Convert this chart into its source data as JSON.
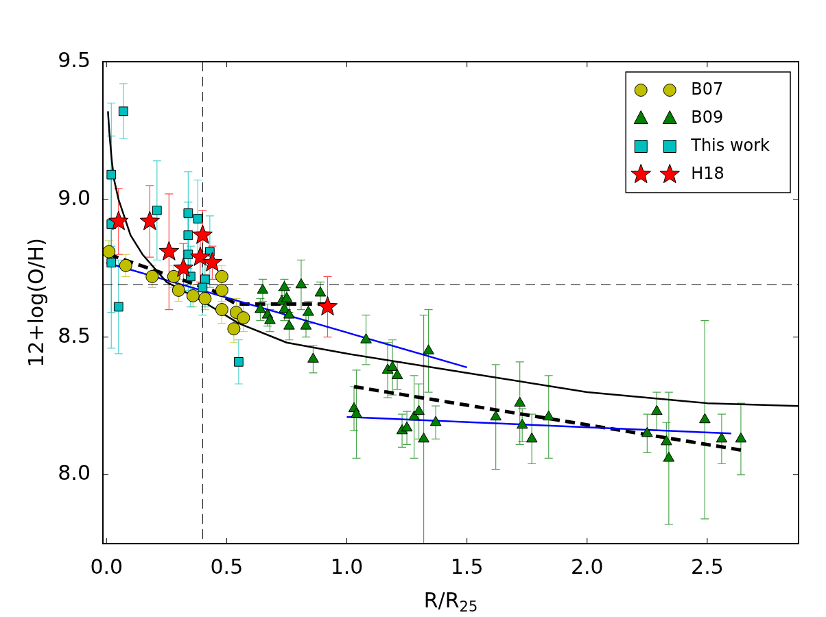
{
  "chart_data": {
    "type": "scatter",
    "xlabel": "R/R$_{25}$",
    "ylabel": "12+log(O/H)",
    "xlim": [
      -0.015,
      2.88
    ],
    "xticks": [
      {
        "value": 0,
        "label": "0.0"
      },
      0.5,
      {
        "value": 1,
        "label": "1.0"
      },
      1.5,
      {
        "value": 2,
        "label": "2.0"
      },
      2.5
    ],
    "ylim": [
      7.75,
      9.5
    ],
    "yticks": [
      {
        "value": 8,
        "label": "8.0"
      },
      8.5,
      {
        "value": 9,
        "label": "9.0"
      },
      9.5
    ],
    "grid": false,
    "legend": "top right",
    "ref_lines": [
      {
        "axis": "x",
        "value": 0.4,
        "color": "#000000",
        "line_style": "dashed"
      },
      {
        "axis": "y",
        "value": 8.69,
        "color": "#000000",
        "line_style": "dashed"
      }
    ],
    "series": [
      {
        "type": "line",
        "color": "#000000",
        "line_style": "solid",
        "x": [
          0.006,
          0.012,
          0.022,
          0.032,
          0.05,
          0.1,
          0.15,
          0.25,
          0.4,
          0.55,
          0.75,
          1.0,
          1.5,
          2.0,
          2.5,
          2.88
        ],
        "values": [
          9.32,
          9.24,
          9.14,
          9.07,
          9.0,
          8.87,
          8.8,
          8.7,
          8.63,
          8.55,
          8.48,
          8.44,
          8.37,
          8.3,
          8.26,
          8.25
        ]
      },
      {
        "name": "B07",
        "marker": "circle",
        "color": "#bfbf00",
        "x": [
          0.01,
          0.08,
          0.19,
          0.28,
          0.3,
          0.36,
          0.41,
          0.48,
          0.48,
          0.48,
          0.54,
          0.57,
          0.53
        ],
        "values": [
          8.81,
          8.76,
          8.72,
          8.72,
          8.67,
          8.65,
          8.64,
          8.72,
          8.67,
          8.6,
          8.59,
          8.57,
          8.53
        ],
        "errors": [
          0.04,
          0.04,
          0.04,
          0.04,
          0.04,
          0.04,
          0.04,
          0.04,
          0.04,
          0.05,
          0.05,
          0.05,
          0.05
        ]
      },
      {
        "name": "B09",
        "marker": "triangle",
        "color": "#008000",
        "x": [
          0.65,
          0.74,
          0.81,
          0.89,
          0.73,
          0.75,
          0.64,
          0.67,
          0.68,
          0.74,
          0.76,
          0.76,
          0.84,
          0.83,
          0.86,
          1.08,
          1.34,
          1.17,
          1.19,
          1.21,
          1.03,
          1.04,
          1.23,
          1.25,
          1.28,
          1.3,
          1.32,
          1.37,
          1.62,
          1.72,
          1.73,
          1.77,
          1.84,
          2.25,
          2.29,
          2.33,
          2.34,
          2.49,
          2.56,
          2.64
        ],
        "values": [
          8.67,
          8.68,
          8.69,
          8.66,
          8.63,
          8.64,
          8.6,
          8.58,
          8.56,
          8.6,
          8.58,
          8.54,
          8.59,
          8.54,
          8.42,
          8.49,
          8.45,
          8.38,
          8.39,
          8.36,
          8.24,
          8.22,
          8.16,
          8.17,
          8.21,
          8.23,
          8.13,
          8.19,
          8.21,
          8.26,
          8.18,
          8.13,
          8.21,
          8.15,
          8.23,
          8.12,
          8.06,
          8.2,
          8.13,
          8.13
        ],
        "errors": [
          0.04,
          0.03,
          0.09,
          0.04,
          0.04,
          0.04,
          0.04,
          0.04,
          0.04,
          0.04,
          0.04,
          0.05,
          0.04,
          0.04,
          0.05,
          0.09,
          0.15,
          0.1,
          0.1,
          0.05,
          0.08,
          0.16,
          0.06,
          0.06,
          0.15,
          0.1,
          [
            7.75,
            8.58
          ],
          0.06,
          0.19,
          0.15,
          0.06,
          0.09,
          0.15,
          0.07,
          0.07,
          0.07,
          0.24,
          0.36,
          0.09,
          0.13
        ]
      },
      {
        "name": "This work",
        "marker": "square",
        "color": "#00bfbf",
        "x": [
          0.07,
          0.02,
          0.02,
          0.21,
          0.02,
          0.05,
          0.34,
          0.38,
          0.34,
          0.34,
          0.43,
          0.35,
          0.41,
          0.4,
          0.55
        ],
        "values": [
          9.32,
          9.09,
          8.91,
          8.96,
          8.77,
          8.61,
          8.95,
          8.93,
          8.87,
          8.8,
          8.81,
          8.72,
          8.71,
          8.68,
          8.41
        ],
        "errors": [
          0.1,
          0.26,
          0.32,
          0.18,
          0.31,
          0.17,
          0.15,
          0.14,
          0.12,
          0.13,
          0.13,
          0.11,
          0.1,
          0.1,
          0.08
        ]
      },
      {
        "name": "H18",
        "marker": "star",
        "color": "#ff0000",
        "x": [
          0.05,
          0.18,
          0.26,
          0.32,
          0.4,
          0.39,
          0.44,
          0.92
        ],
        "values": [
          8.92,
          8.92,
          8.81,
          8.75,
          8.87,
          8.79,
          8.77,
          8.61
        ],
        "errors": [
          0.12,
          0.13,
          0.21,
          0.09,
          0.09,
          0.09,
          0.06,
          0.11
        ]
      },
      {
        "type": "line",
        "color": "#0000ff",
        "line_style": "solid",
        "x": [
          0,
          1.5
        ],
        "values": [
          8.77,
          8.39
        ]
      },
      {
        "type": "line",
        "color": "#0000ff",
        "line_style": "solid",
        "x": [
          1.0,
          2.6
        ],
        "values": [
          8.21,
          8.15
        ]
      },
      {
        "type": "line",
        "color": "#000000",
        "line_style": "dashed",
        "x": [
          0.01,
          0.44,
          0.54,
          0.92
        ],
        "values": [
          8.8,
          8.67,
          8.62,
          8.62
        ]
      },
      {
        "type": "line",
        "color": "#000000",
        "line_style": "dashed",
        "x": [
          1.03,
          2.64
        ],
        "values": [
          8.32,
          8.09
        ]
      }
    ]
  }
}
